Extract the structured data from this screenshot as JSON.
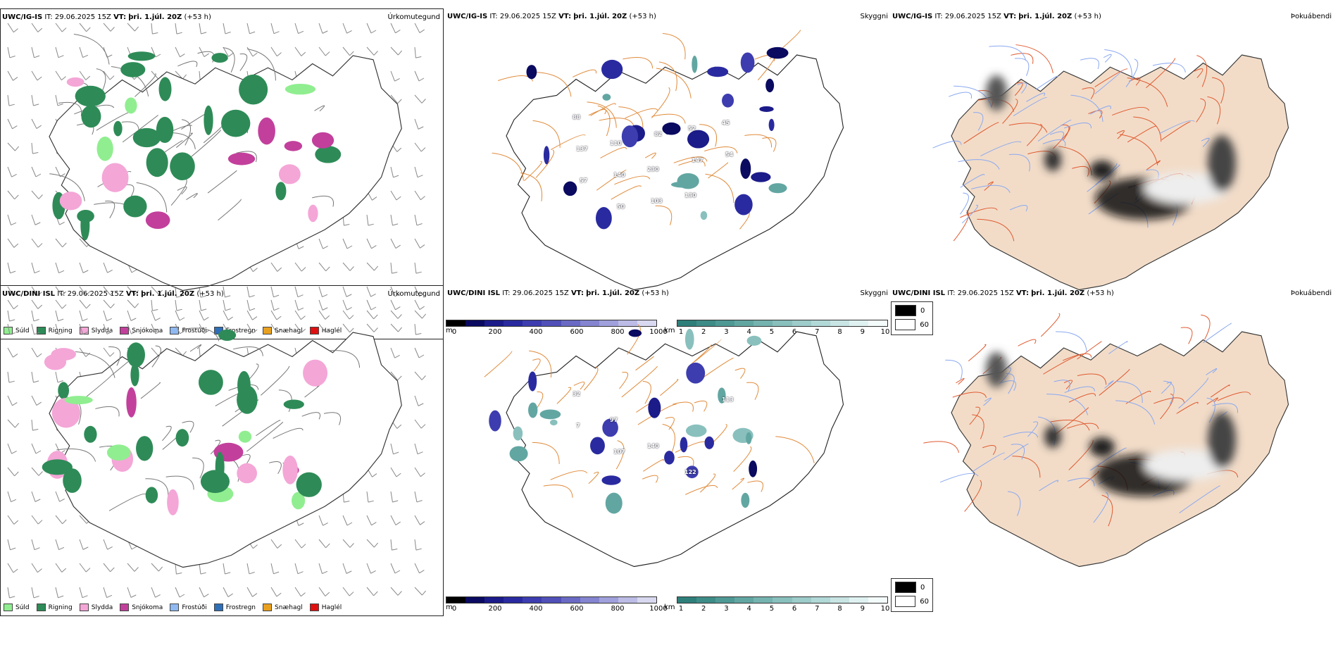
{
  "rows": [
    {
      "model": "UWC/IG-IS",
      "precip": {
        "it_label": "IT:",
        "it": "29.06.2025 15Z",
        "vt_label": "VT:",
        "vt": "þri. 1.júl. 20Z",
        "lead": "(+53 h)",
        "name": "Úrkomutegund"
      },
      "cloud": {
        "it_label": "IT:",
        "it": "29.06.2025 15Z",
        "vt_label": "VT:",
        "vt": "þri. 1.júl. 20Z",
        "lead": "(+53 h)",
        "name": "Skyggni"
      },
      "fog": {
        "it_label": "IT:",
        "it": "29.06.2025 15Z",
        "vt_label": "VT:",
        "vt": "þri. 1.júl. 20Z",
        "lead": "(+53 h)",
        "name": "Þokuábendi"
      },
      "cloud_labels": [
        "88",
        "110",
        "230",
        "130",
        "45",
        "137",
        "140",
        "103",
        "52",
        "54",
        "57",
        "50",
        "82",
        "147"
      ]
    },
    {
      "model": "UWC/DINI ISL",
      "precip": {
        "it_label": "IT:",
        "it": "29.06.2025 15Z",
        "vt_label": "VT:",
        "vt": "þri. 1.júl. 20Z",
        "lead": "(+53 h)",
        "name": "Úrkomutegund"
      },
      "cloud": {
        "it_label": "IT:",
        "it": "29.06.2025 15Z",
        "vt_label": "VT:",
        "vt": "þri. 1.júl. 20Z",
        "lead": "(+53 h)",
        "name": "Skyggni"
      },
      "fog": {
        "it_label": "IT:",
        "it": "29.06.2025 15Z",
        "vt_label": "VT:",
        "vt": "þri. 1.júl. 20Z",
        "lead": "(+53 h)",
        "name": "Þokuábendi"
      },
      "cloud_labels": [
        "32",
        "97",
        "140",
        "122",
        "113",
        "7",
        "107"
      ]
    }
  ],
  "precip_legend": [
    {
      "label": "Súld",
      "color": "#90ee90"
    },
    {
      "label": "Rigning",
      "color": "#2e8b57"
    },
    {
      "label": "Slydda",
      "color": "#f4a6d7"
    },
    {
      "label": "Snjókoma",
      "color": "#c2409c"
    },
    {
      "label": "Frostúði",
      "color": "#8fb9f0"
    },
    {
      "label": "Frostregn",
      "color": "#2f6fb7"
    },
    {
      "label": "Snæhagl",
      "color": "#e8a020"
    },
    {
      "label": "Haglél",
      "color": "#e01010"
    }
  ],
  "ceiling_bar": {
    "unit": "m",
    "ticks": [
      "0",
      "200",
      "400",
      "600",
      "800",
      "1000"
    ],
    "colors": [
      "#000000",
      "#0a0a60",
      "#1b1b8a",
      "#2a2aa0",
      "#3d3db0",
      "#5050b8",
      "#6a6ac4",
      "#8484d0",
      "#a0a0dc",
      "#bcbce6",
      "#d8d8f0"
    ]
  },
  "vis_bar": {
    "unit": "km",
    "ticks": [
      "1",
      "2",
      "3",
      "4",
      "5",
      "6",
      "7",
      "8",
      "9",
      "10"
    ],
    "colors": [
      "#2e7f7a",
      "#3e8c87",
      "#4f9995",
      "#62a6a2",
      "#75b3b0",
      "#89c0bd",
      "#9dccca",
      "#b2d9d7",
      "#c8e5e4",
      "#dff2f1",
      "#f4fbfb"
    ]
  },
  "fog_legend": [
    "0",
    "60"
  ]
}
